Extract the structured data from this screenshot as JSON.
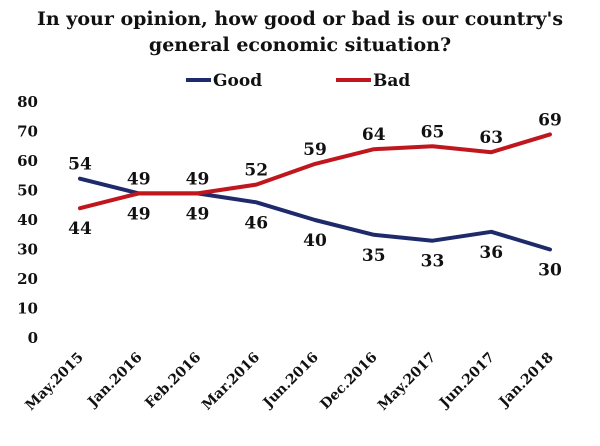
{
  "chart_data": {
    "type": "line",
    "title": [
      "In your opinion, how good or bad is our country's",
      "general economic situation?"
    ],
    "categories": [
      "May.2015",
      "Jan.2016",
      "Feb.2016",
      "Mar.2016",
      "Jun.2016",
      "Dec.2016",
      "May.2017",
      "Jun.2017",
      "Jan.2018"
    ],
    "series": [
      {
        "name": "Good",
        "color": "#1f2a6b",
        "values": [
          54,
          49,
          49,
          46,
          40,
          35,
          33,
          36,
          30
        ]
      },
      {
        "name": "Bad",
        "color": "#c0161d",
        "values": [
          44,
          49,
          49,
          52,
          59,
          64,
          65,
          63,
          69
        ]
      }
    ],
    "yticks": [
      "0",
      "10",
      "20",
      "30",
      "40",
      "50",
      "60",
      "70",
      "80"
    ],
    "ylim": [
      0,
      80
    ],
    "xlabel": "",
    "ylabel": "",
    "grid": false,
    "legend": "top-center"
  }
}
